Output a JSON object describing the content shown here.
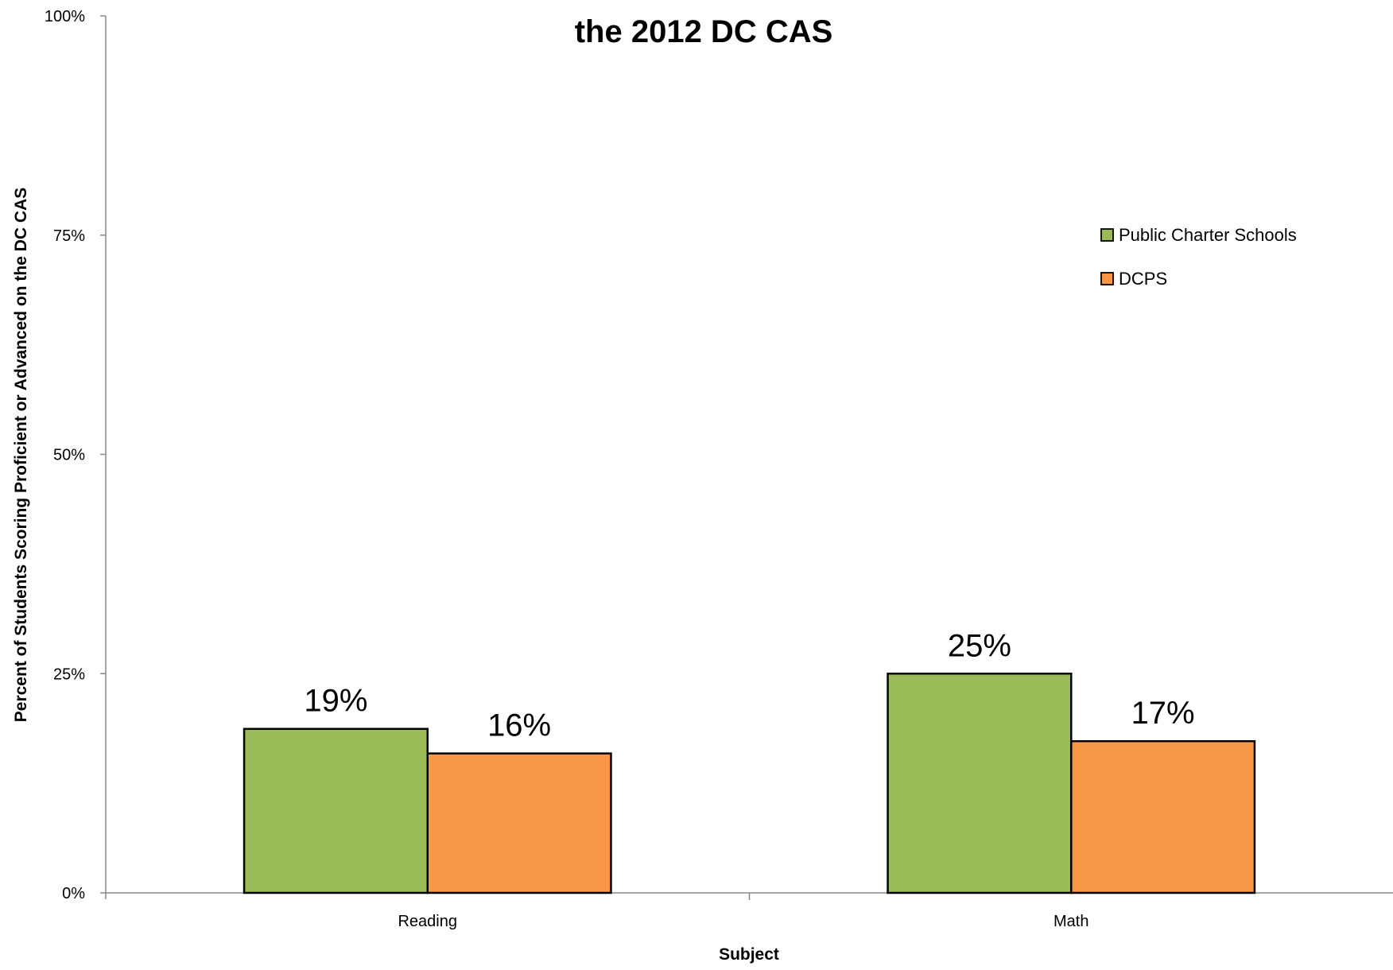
{
  "chart_data": {
    "type": "bar",
    "title_lines": [
      "the 2012 DC CAS"
    ],
    "xlabel": "Subject",
    "ylabel": "Percent of Students Scoring Proficient or Advanced on the DC CAS",
    "categories": [
      "Reading",
      "Math"
    ],
    "series": [
      {
        "name": "Public Charter Schools",
        "color": "#9BBB59",
        "values": [
          18.7,
          25
        ],
        "labels": [
          "19%",
          "25%"
        ]
      },
      {
        "name": "DCPS",
        "color": "#F79646",
        "values": [
          15.9,
          17.3
        ],
        "labels": [
          "16%",
          "17%"
        ]
      }
    ],
    "ylim": [
      0,
      100
    ],
    "yticks": [
      0,
      25,
      50,
      75,
      100
    ],
    "ytick_labels": [
      "0%",
      "25%",
      "50%",
      "75%",
      "100%"
    ],
    "grid": false,
    "legend_position": "right"
  }
}
